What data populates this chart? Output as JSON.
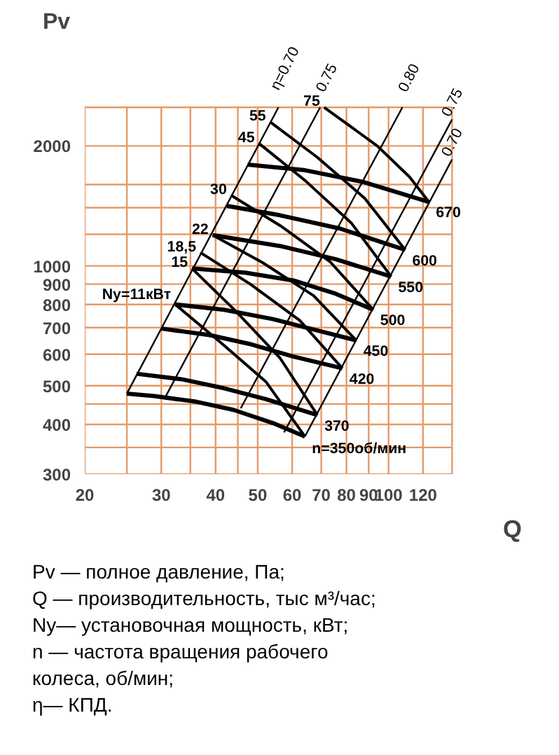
{
  "chart_data": {
    "type": "line",
    "xlabel": "Q",
    "ylabel": "Pv",
    "log": "xy",
    "grid": true,
    "xlim": [
      20,
      140
    ],
    "ylim": [
      300,
      2500
    ],
    "xticks": [
      20,
      {
        "value": 25,
        "label": null
      },
      30,
      {
        "value": 35,
        "label": null
      },
      40,
      {
        "value": 45,
        "label": null
      },
      50,
      60,
      70,
      80,
      90,
      100,
      120,
      {
        "value": 140,
        "label": null
      }
    ],
    "yticks": [
      300,
      {
        "value": 350,
        "label": null
      },
      400,
      {
        "value": 450,
        "label": null
      },
      500,
      600,
      700,
      800,
      900,
      1000,
      {
        "value": 1200,
        "label": null
      },
      {
        "value": 1400,
        "label": null
      },
      {
        "value": 1600,
        "label": null
      },
      2000,
      {
        "value": 2500,
        "label": null
      }
    ],
    "series": [
      {
        "name": "n=350об/мин",
        "color": "#000000",
        "x": [
          25.0,
          28.9,
          36.1,
          44.0,
          54.2,
          64.2
        ],
        "values": [
          478,
          471,
          456,
          435,
          403,
          373
        ]
      },
      {
        "name": "370",
        "color": "#000000",
        "x": [
          26.3,
          33.5,
          41.8,
          52.2,
          68.6
        ],
        "values": [
          536,
          519,
          493,
          463,
          422
        ]
      },
      {
        "name": "420",
        "color": "#000000",
        "x": [
          30.0,
          38.8,
          48.4,
          60.4,
          78.3
        ],
        "values": [
          696,
          670,
          635,
          592,
          553
        ]
      },
      {
        "name": "450",
        "color": "#000000",
        "x": [
          32.3,
          41.8,
          54.2,
          67.6,
          84.3
        ],
        "values": [
          800,
          776,
          735,
          691,
          650
        ]
      },
      {
        "name": "500",
        "color": "#000000",
        "x": [
          35.3,
          46.7,
          60.4,
          75.6,
          92.2
        ],
        "values": [
          985,
          962,
          919,
          851,
          776
        ]
      },
      {
        "name": "550",
        "color": "#000000",
        "x": [
          39.4,
          56.2,
          75.6,
          101.4
        ],
        "values": [
          1194,
          1122,
          1039,
          940
        ]
      },
      {
        "name": "600",
        "color": "#000000",
        "x": [
          42.5,
          56.2,
          77.2,
          109.2
        ],
        "values": [
          1414,
          1340,
          1241,
          1097
        ]
      },
      {
        "name": "670",
        "color": "#000000",
        "x": [
          47.4,
          63.7,
          87.5,
          123.8
        ],
        "values": [
          1796,
          1741,
          1624,
          1447
        ]
      },
      {
        "name": "Ny=11кВт",
        "color": "#000000",
        "x": [
          32.3,
          40.9,
          52.2,
          64.2
        ],
        "values": [
          800,
          645,
          512,
          373
        ]
      },
      {
        "name": "15",
        "color": "#000000",
        "x": [
          35.3,
          44.5,
          56.2,
          68.6
        ],
        "values": [
          985,
          770,
          588,
          422
        ]
      },
      {
        "name": "18,5",
        "color": "#000000",
        "x": [
          36.9,
          48.0,
          62.5,
          78.3
        ],
        "values": [
          1080,
          901,
          729,
          553
        ]
      },
      {
        "name": "22",
        "color": "#000000",
        "x": [
          39.4,
          51.4,
          67.2,
          84.3
        ],
        "values": [
          1194,
          1018,
          842,
          650
        ]
      },
      {
        "name": "30",
        "color": "#000000",
        "x": [
          43.4,
          56.5,
          73.5,
          92.2
        ],
        "values": [
          1504,
          1259,
          1022,
          776
        ]
      },
      {
        "name": "45",
        "color": "#000000",
        "x": [
          50.3,
          64.3,
          82.2,
          101.4
        ],
        "values": [
          2031,
          1637,
          1279,
          940
        ]
      },
      {
        "name": "55",
        "color": "#000000",
        "x": [
          53.4,
          68.6,
          88.1,
          109.2
        ],
        "values": [
          2297,
          1872,
          1479,
          1097
        ]
      },
      {
        "name": "75",
        "color": "#000000",
        "x": [
          71.1,
          94.2,
          111.6,
          123.8
        ],
        "values": [
          2500,
          2000,
          1675,
          1447
        ]
      },
      {
        "name": "η=0.70",
        "color": "#000000",
        "x": [
          25.0,
          55.8
        ],
        "values": [
          478,
          2500
        ]
      },
      {
        "name": "0.75",
        "color": "#000000",
        "x": [
          30.7,
          69.6
        ],
        "values": [
          470,
          2500
        ]
      },
      {
        "name": "0.80",
        "color": "#000000",
        "x": [
          45.7,
          107.6
        ],
        "values": [
          439,
          2500
        ]
      },
      {
        "name": "0.75",
        "color": "#000000",
        "x": [
          57.5,
          140
        ],
        "values": [
          382,
          2330
        ]
      },
      {
        "name": "0.70",
        "color": "#000000",
        "x": [
          64.2,
          140
        ],
        "values": [
          373,
          1850
        ]
      }
    ],
    "annotations": [
      "Pv — полное давление, Па;",
      "Q  — производительность, тыс м³/час;",
      "Ny— установочная мощность, кВт;",
      "n — частота вращения рабочего",
      "колеса, об/мин;",
      "η— КПД."
    ]
  }
}
